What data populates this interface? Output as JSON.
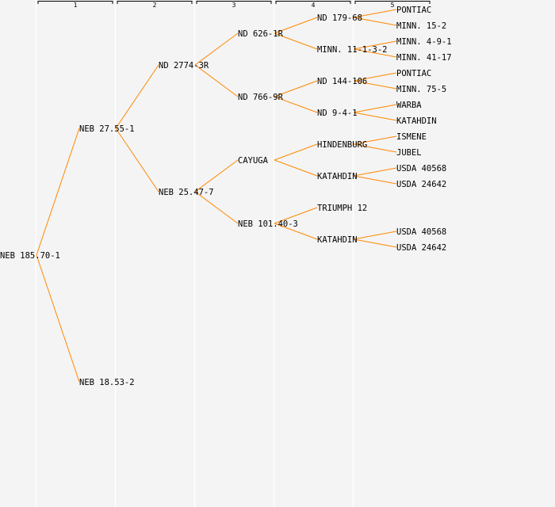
{
  "columns": [
    "1",
    "2",
    "3",
    "4",
    "5"
  ],
  "colors": {
    "line": "#ff8800",
    "background": "#f4f4f4",
    "divider": "#ffffff",
    "text": "#000000"
  },
  "generations": [
    [
      "NEB 185.70-1"
    ],
    [
      "NEB 27.55-1",
      "NEB 18.53-2"
    ],
    [
      "ND 2774-3R",
      "NEB 25.47-7",
      null,
      null
    ],
    [
      "ND 626-1R",
      "ND 766-9R",
      "CAYUGA",
      "NEB 101.40-3",
      null,
      null,
      null,
      null
    ],
    [
      "ND 179-68",
      "MINN. 11-1-3-2",
      "ND 144-106",
      "ND 9-4-1",
      "HINDENBURG",
      "KATAHDIN",
      "TRIUMPH 12",
      "KATAHDIN",
      null,
      null,
      null,
      null,
      null,
      null,
      null,
      null
    ],
    [
      "PONTIAC",
      "MINN. 15-2",
      "MINN. 4-9-1",
      "MINN. 41-17",
      "PONTIAC",
      "MINN. 75-5",
      "WARBA",
      "KATAHDIN",
      "ISMENE",
      "JUBEL",
      "USDA 40568",
      "USDA 24642",
      null,
      null,
      "USDA 40568",
      "USDA 24642",
      null,
      null,
      null,
      null,
      null,
      null,
      null,
      null,
      null,
      null,
      null,
      null,
      null,
      null,
      null,
      null
    ]
  ]
}
